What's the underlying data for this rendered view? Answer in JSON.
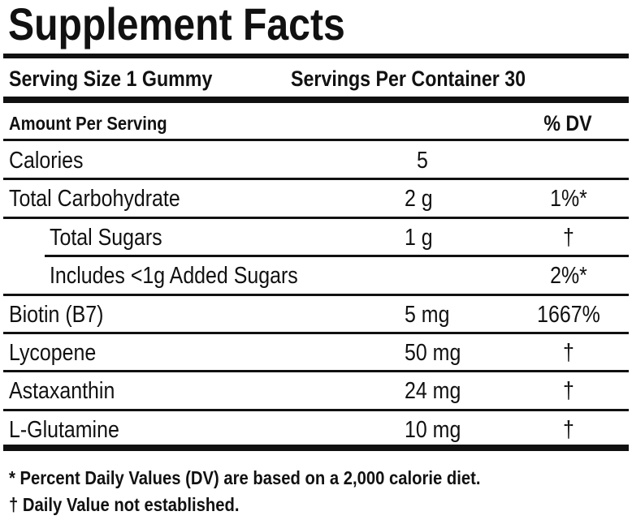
{
  "header": {
    "title": "Supplement Facts",
    "serving_size": "Serving Size 1 Gummy",
    "servings_per_container": "Servings Per Container 30"
  },
  "table": {
    "columns": [
      "Amount Per Serving",
      "% DV"
    ],
    "rows": [
      {
        "name": "Calories",
        "amount": "5"
      },
      {
        "name": "Total Carbohydrate",
        "amount": "2 g",
        "dv": "1%*",
        "sub_rows": [
          {
            "name": "Total Sugars",
            "amount": "1 g",
            "dv": "†"
          },
          {
            "name": "Includes <1g Added Sugars",
            "dv": "2%*"
          }
        ]
      },
      {
        "name": "Biotin (B7)",
        "amount": "5 mg",
        "dv": "1667%"
      },
      {
        "name": "Lycopene",
        "amount": "50 mg",
        "dv": "†"
      },
      {
        "name": "Astaxanthin",
        "amount": "24 mg",
        "dv": "†"
      },
      {
        "name": "L-Glutamine",
        "amount": "10 mg",
        "dv": "†"
      }
    ]
  },
  "footnotes": [
    "* Percent Daily Values (DV) are based on a 2,000 calorie diet.",
    "† Daily Value not established."
  ]
}
